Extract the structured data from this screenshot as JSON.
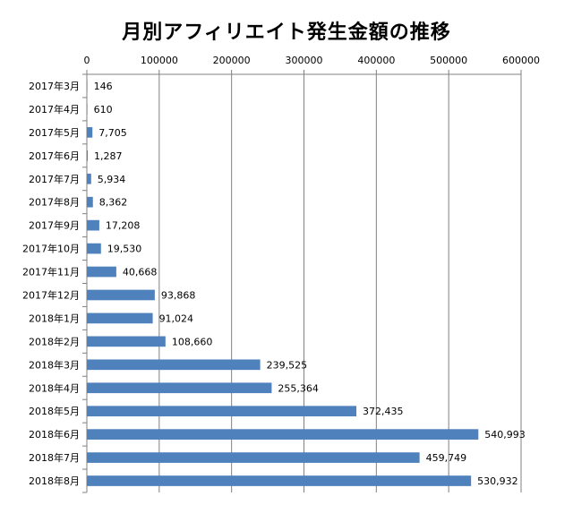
{
  "chart_data": {
    "type": "bar",
    "orientation": "horizontal",
    "title": "月別アフィリエイト発生金額の推移",
    "categories": [
      "2017年3月",
      "2017年4月",
      "2017年5月",
      "2017年6月",
      "2017年7月",
      "2017年8月",
      "2017年9月",
      "2017年10月",
      "2017年11月",
      "2017年12月",
      "2018年1月",
      "2018年2月",
      "2018年3月",
      "2018年4月",
      "2018年5月",
      "2018年6月",
      "2018年7月",
      "2018年8月"
    ],
    "values": [
      146,
      610,
      7705,
      1287,
      5934,
      8362,
      17208,
      19530,
      40668,
      93868,
      91024,
      108660,
      239525,
      255364,
      372435,
      540993,
      459749,
      530932
    ],
    "value_labels": [
      "146",
      "610",
      "7,705",
      "1,287",
      "5,934",
      "8,362",
      "17,208",
      "19,530",
      "40,668",
      "93,868",
      "91,024",
      "108,660",
      "239,525",
      "255,364",
      "372,435",
      "540,993",
      "459,749",
      "530,932"
    ],
    "xticks": [
      "0",
      "100000",
      "200000",
      "300000",
      "400000",
      "500000",
      "600000"
    ],
    "xlim": [
      0,
      600000
    ],
    "xaxis_position": "top",
    "grid": "vertical",
    "bar_color": "#4f81bd",
    "grid_color": "#808080"
  }
}
